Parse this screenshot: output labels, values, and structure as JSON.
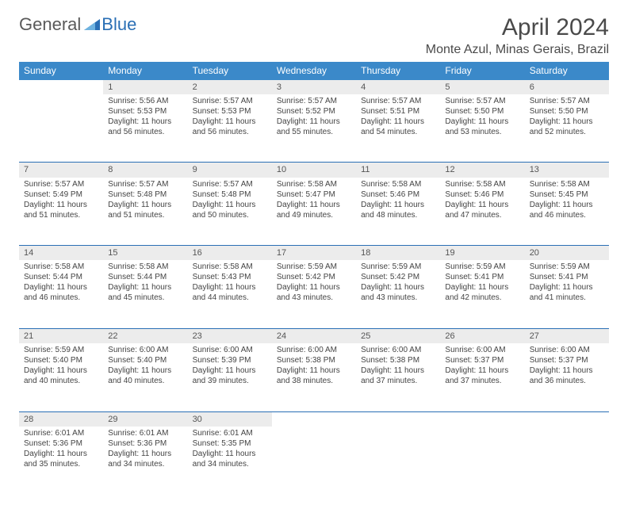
{
  "logo": {
    "text1": "General",
    "text2": "Blue"
  },
  "title": "April 2024",
  "location": "Monte Azul, Minas Gerais, Brazil",
  "colors": {
    "header_bg": "#3b89c9",
    "header_text": "#ffffff",
    "daynum_bg": "#ececec",
    "divider": "#2a6fb5",
    "logo_gray": "#5a5a5a",
    "logo_blue": "#2a6fb5"
  },
  "weekdays": [
    "Sunday",
    "Monday",
    "Tuesday",
    "Wednesday",
    "Thursday",
    "Friday",
    "Saturday"
  ],
  "weeks": [
    [
      {
        "n": "",
        "lines": []
      },
      {
        "n": "1",
        "lines": [
          "Sunrise: 5:56 AM",
          "Sunset: 5:53 PM",
          "Daylight: 11 hours and 56 minutes."
        ]
      },
      {
        "n": "2",
        "lines": [
          "Sunrise: 5:57 AM",
          "Sunset: 5:53 PM",
          "Daylight: 11 hours and 56 minutes."
        ]
      },
      {
        "n": "3",
        "lines": [
          "Sunrise: 5:57 AM",
          "Sunset: 5:52 PM",
          "Daylight: 11 hours and 55 minutes."
        ]
      },
      {
        "n": "4",
        "lines": [
          "Sunrise: 5:57 AM",
          "Sunset: 5:51 PM",
          "Daylight: 11 hours and 54 minutes."
        ]
      },
      {
        "n": "5",
        "lines": [
          "Sunrise: 5:57 AM",
          "Sunset: 5:50 PM",
          "Daylight: 11 hours and 53 minutes."
        ]
      },
      {
        "n": "6",
        "lines": [
          "Sunrise: 5:57 AM",
          "Sunset: 5:50 PM",
          "Daylight: 11 hours and 52 minutes."
        ]
      }
    ],
    [
      {
        "n": "7",
        "lines": [
          "Sunrise: 5:57 AM",
          "Sunset: 5:49 PM",
          "Daylight: 11 hours and 51 minutes."
        ]
      },
      {
        "n": "8",
        "lines": [
          "Sunrise: 5:57 AM",
          "Sunset: 5:48 PM",
          "Daylight: 11 hours and 51 minutes."
        ]
      },
      {
        "n": "9",
        "lines": [
          "Sunrise: 5:57 AM",
          "Sunset: 5:48 PM",
          "Daylight: 11 hours and 50 minutes."
        ]
      },
      {
        "n": "10",
        "lines": [
          "Sunrise: 5:58 AM",
          "Sunset: 5:47 PM",
          "Daylight: 11 hours and 49 minutes."
        ]
      },
      {
        "n": "11",
        "lines": [
          "Sunrise: 5:58 AM",
          "Sunset: 5:46 PM",
          "Daylight: 11 hours and 48 minutes."
        ]
      },
      {
        "n": "12",
        "lines": [
          "Sunrise: 5:58 AM",
          "Sunset: 5:46 PM",
          "Daylight: 11 hours and 47 minutes."
        ]
      },
      {
        "n": "13",
        "lines": [
          "Sunrise: 5:58 AM",
          "Sunset: 5:45 PM",
          "Daylight: 11 hours and 46 minutes."
        ]
      }
    ],
    [
      {
        "n": "14",
        "lines": [
          "Sunrise: 5:58 AM",
          "Sunset: 5:44 PM",
          "Daylight: 11 hours and 46 minutes."
        ]
      },
      {
        "n": "15",
        "lines": [
          "Sunrise: 5:58 AM",
          "Sunset: 5:44 PM",
          "Daylight: 11 hours and 45 minutes."
        ]
      },
      {
        "n": "16",
        "lines": [
          "Sunrise: 5:58 AM",
          "Sunset: 5:43 PM",
          "Daylight: 11 hours and 44 minutes."
        ]
      },
      {
        "n": "17",
        "lines": [
          "Sunrise: 5:59 AM",
          "Sunset: 5:42 PM",
          "Daylight: 11 hours and 43 minutes."
        ]
      },
      {
        "n": "18",
        "lines": [
          "Sunrise: 5:59 AM",
          "Sunset: 5:42 PM",
          "Daylight: 11 hours and 43 minutes."
        ]
      },
      {
        "n": "19",
        "lines": [
          "Sunrise: 5:59 AM",
          "Sunset: 5:41 PM",
          "Daylight: 11 hours and 42 minutes."
        ]
      },
      {
        "n": "20",
        "lines": [
          "Sunrise: 5:59 AM",
          "Sunset: 5:41 PM",
          "Daylight: 11 hours and 41 minutes."
        ]
      }
    ],
    [
      {
        "n": "21",
        "lines": [
          "Sunrise: 5:59 AM",
          "Sunset: 5:40 PM",
          "Daylight: 11 hours and 40 minutes."
        ]
      },
      {
        "n": "22",
        "lines": [
          "Sunrise: 6:00 AM",
          "Sunset: 5:40 PM",
          "Daylight: 11 hours and 40 minutes."
        ]
      },
      {
        "n": "23",
        "lines": [
          "Sunrise: 6:00 AM",
          "Sunset: 5:39 PM",
          "Daylight: 11 hours and 39 minutes."
        ]
      },
      {
        "n": "24",
        "lines": [
          "Sunrise: 6:00 AM",
          "Sunset: 5:38 PM",
          "Daylight: 11 hours and 38 minutes."
        ]
      },
      {
        "n": "25",
        "lines": [
          "Sunrise: 6:00 AM",
          "Sunset: 5:38 PM",
          "Daylight: 11 hours and 37 minutes."
        ]
      },
      {
        "n": "26",
        "lines": [
          "Sunrise: 6:00 AM",
          "Sunset: 5:37 PM",
          "Daylight: 11 hours and 37 minutes."
        ]
      },
      {
        "n": "27",
        "lines": [
          "Sunrise: 6:00 AM",
          "Sunset: 5:37 PM",
          "Daylight: 11 hours and 36 minutes."
        ]
      }
    ],
    [
      {
        "n": "28",
        "lines": [
          "Sunrise: 6:01 AM",
          "Sunset: 5:36 PM",
          "Daylight: 11 hours and 35 minutes."
        ]
      },
      {
        "n": "29",
        "lines": [
          "Sunrise: 6:01 AM",
          "Sunset: 5:36 PM",
          "Daylight: 11 hours and 34 minutes."
        ]
      },
      {
        "n": "30",
        "lines": [
          "Sunrise: 6:01 AM",
          "Sunset: 5:35 PM",
          "Daylight: 11 hours and 34 minutes."
        ]
      },
      {
        "n": "",
        "lines": []
      },
      {
        "n": "",
        "lines": []
      },
      {
        "n": "",
        "lines": []
      },
      {
        "n": "",
        "lines": []
      }
    ]
  ]
}
